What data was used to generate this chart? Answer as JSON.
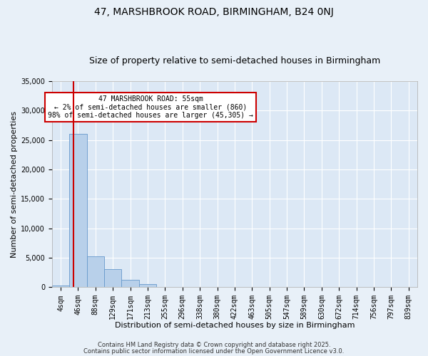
{
  "title1": "47, MARSHBROOK ROAD, BIRMINGHAM, B24 0NJ",
  "title2": "Size of property relative to semi-detached houses in Birmingham",
  "xlabel": "Distribution of semi-detached houses by size in Birmingham",
  "ylabel": "Number of semi-detached properties",
  "bar_labels": [
    "4sqm",
    "46sqm",
    "88sqm",
    "129sqm",
    "171sqm",
    "213sqm",
    "255sqm",
    "296sqm",
    "338sqm",
    "380sqm",
    "422sqm",
    "463sqm",
    "505sqm",
    "547sqm",
    "589sqm",
    "630sqm",
    "672sqm",
    "714sqm",
    "756sqm",
    "797sqm",
    "839sqm"
  ],
  "bar_values": [
    300,
    26100,
    5200,
    3100,
    1200,
    500,
    100,
    0,
    0,
    0,
    0,
    0,
    0,
    0,
    0,
    0,
    0,
    0,
    0,
    0,
    0
  ],
  "bar_color": "#b8d0ea",
  "bar_edgecolor": "#6699cc",
  "ylim": [
    0,
    35000
  ],
  "yticks": [
    0,
    5000,
    10000,
    15000,
    20000,
    25000,
    30000,
    35000
  ],
  "red_line_color": "#cc0000",
  "annotation_title": "47 MARSHBROOK ROAD: 55sqm",
  "annotation_line1": "← 2% of semi-detached houses are smaller (860)",
  "annotation_line2": "98% of semi-detached houses are larger (45,305) →",
  "annotation_box_color": "#ffffff",
  "annotation_box_edge": "#cc0000",
  "footer1": "Contains HM Land Registry data © Crown copyright and database right 2025.",
  "footer2": "Contains public sector information licensed under the Open Government Licence v3.0.",
  "bg_color": "#e8f0f8",
  "plot_bg_color": "#dce8f5",
  "grid_color": "#ffffff",
  "title_fontsize": 10,
  "subtitle_fontsize": 9,
  "axis_label_fontsize": 8,
  "tick_fontsize": 7,
  "annotation_fontsize": 7,
  "footer_fontsize": 6
}
